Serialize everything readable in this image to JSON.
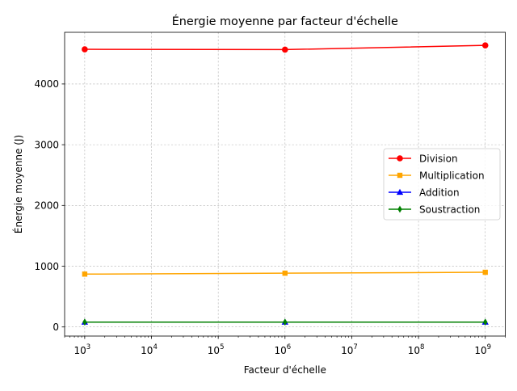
{
  "chart_data": {
    "type": "line",
    "title": "Énergie moyenne par facteur d'échelle",
    "xlabel": "Facteur d'échelle",
    "ylabel": "Énergie moyenne (J)",
    "x_scale": "log",
    "x": [
      1000,
      1000000,
      1000000000
    ],
    "xlim": [
      500,
      2000000000
    ],
    "ylim": [
      -150,
      4850
    ],
    "x_ticks": [
      {
        "value": 1000,
        "base": "10",
        "exp": "3"
      },
      {
        "value": 10000,
        "base": "10",
        "exp": "4"
      },
      {
        "value": 100000,
        "base": "10",
        "exp": "5"
      },
      {
        "value": 1000000,
        "base": "10",
        "exp": "6"
      },
      {
        "value": 10000000,
        "base": "10",
        "exp": "7"
      },
      {
        "value": 100000000,
        "base": "10",
        "exp": "8"
      },
      {
        "value": 1000000000,
        "base": "10",
        "exp": "9"
      }
    ],
    "y_ticks": [
      {
        "value": 0,
        "label": "0"
      },
      {
        "value": 1000,
        "label": "1000"
      },
      {
        "value": 2000,
        "label": "2000"
      },
      {
        "value": 3000,
        "label": "3000"
      },
      {
        "value": 4000,
        "label": "4000"
      }
    ],
    "grid": true,
    "legend_position": "center-right",
    "series": [
      {
        "name": "Division",
        "color": "#ff0000",
        "marker": "circle",
        "values": [
          4570,
          4565,
          4635
        ]
      },
      {
        "name": "Multiplication",
        "color": "#ffa500",
        "marker": "square",
        "values": [
          870,
          885,
          900
        ]
      },
      {
        "name": "Addition",
        "color": "#0000ff",
        "marker": "triangle",
        "values": [
          80,
          80,
          80
        ]
      },
      {
        "name": "Soustraction",
        "color": "#008000",
        "marker": "diamond",
        "values": [
          80,
          80,
          80
        ]
      }
    ]
  }
}
